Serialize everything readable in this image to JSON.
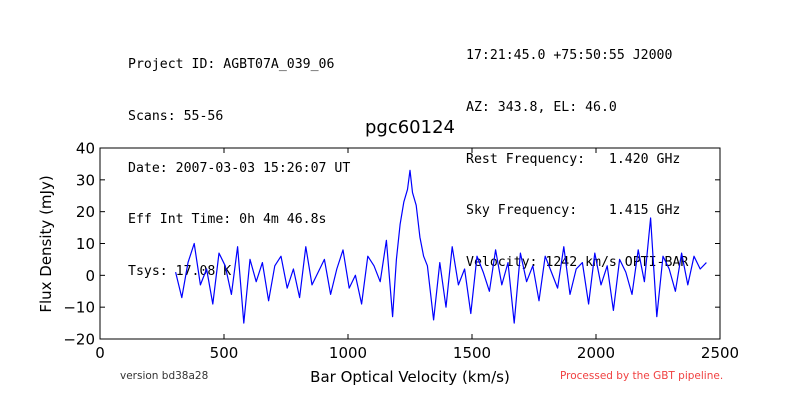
{
  "header": {
    "left": [
      "Project ID: AGBT07A_039_06",
      "Scans: 55-56",
      "Date: 2007-03-03 15:26:07 UT",
      "Eff Int Time: 0h 4m 46.8s",
      "Tsys: 17.08 K"
    ],
    "right": [
      "17:21:45.0 +75:50:55 J2000",
      "AZ: 343.8, EL: 46.0",
      "Rest Frequency:   1.420 GHz",
      "Sky Frequency:    1.415 GHz",
      "Velocity: 1242 km/s OPTI-BAR"
    ]
  },
  "footer": {
    "version": "version bd38a28",
    "pipeline": "Processed by the GBT pipeline."
  },
  "colors": {
    "line": "#0000ff",
    "pipeline_text": "#f04040"
  },
  "chart_data": {
    "type": "line",
    "title": "pgc60124",
    "xlabel": "Bar Optical Velocity (km/s)",
    "ylabel": "Flux Density (mJy)",
    "xlim": [
      0,
      2500
    ],
    "ylim": [
      -20,
      40
    ],
    "xticks": [
      0,
      500,
      1000,
      1500,
      2000,
      2500
    ],
    "yticks": [
      -20,
      -10,
      0,
      10,
      20,
      30,
      40
    ],
    "xtick_labels": [
      "0",
      "500",
      "1000",
      "1500",
      "2000",
      "2500"
    ],
    "ytick_labels": [
      "−20",
      "−10",
      "0",
      "10",
      "20",
      "30",
      "40"
    ],
    "grid": false,
    "series": [
      {
        "x": [
          305,
          330,
          355,
          380,
          405,
          430,
          455,
          480,
          505,
          530,
          555,
          580,
          605,
          630,
          655,
          680,
          705,
          730,
          755,
          780,
          805,
          830,
          855,
          880,
          905,
          930,
          955,
          980,
          1005,
          1030,
          1055,
          1080,
          1105,
          1130,
          1155,
          1180,
          1195,
          1210,
          1225,
          1240,
          1250,
          1260,
          1275,
          1290,
          1305,
          1320,
          1345,
          1370,
          1395,
          1420,
          1445,
          1470,
          1495,
          1520,
          1545,
          1570,
          1595,
          1620,
          1645,
          1670,
          1695,
          1720,
          1745,
          1770,
          1795,
          1820,
          1845,
          1870,
          1895,
          1920,
          1945,
          1970,
          1995,
          2020,
          2045,
          2070,
          2095,
          2120,
          2145,
          2170,
          2195,
          2220,
          2245,
          2270,
          2295,
          2320,
          2345,
          2370,
          2395,
          2420,
          2445
        ],
        "values": [
          1,
          -7,
          4,
          10,
          -3,
          2,
          -9,
          7,
          3,
          -6,
          9,
          -15,
          5,
          -2,
          4,
          -8,
          3,
          6,
          -4,
          2,
          -7,
          9,
          -3,
          1,
          5,
          -6,
          2,
          8,
          -4,
          0,
          -9,
          6,
          3,
          -2,
          11,
          -13,
          5,
          16,
          23,
          27,
          33,
          26,
          22,
          12,
          6,
          3,
          -14,
          4,
          -10,
          9,
          -3,
          2,
          -12,
          6,
          1,
          -5,
          8,
          -3,
          4,
          -15,
          7,
          -2,
          3,
          -8,
          6,
          1,
          -4,
          9,
          -6,
          2,
          4,
          -9,
          7,
          -3,
          3,
          -11,
          5,
          1,
          -6,
          8,
          -2,
          18,
          -13,
          6,
          2,
          -5,
          7,
          -3,
          6,
          2,
          4
        ]
      }
    ]
  }
}
